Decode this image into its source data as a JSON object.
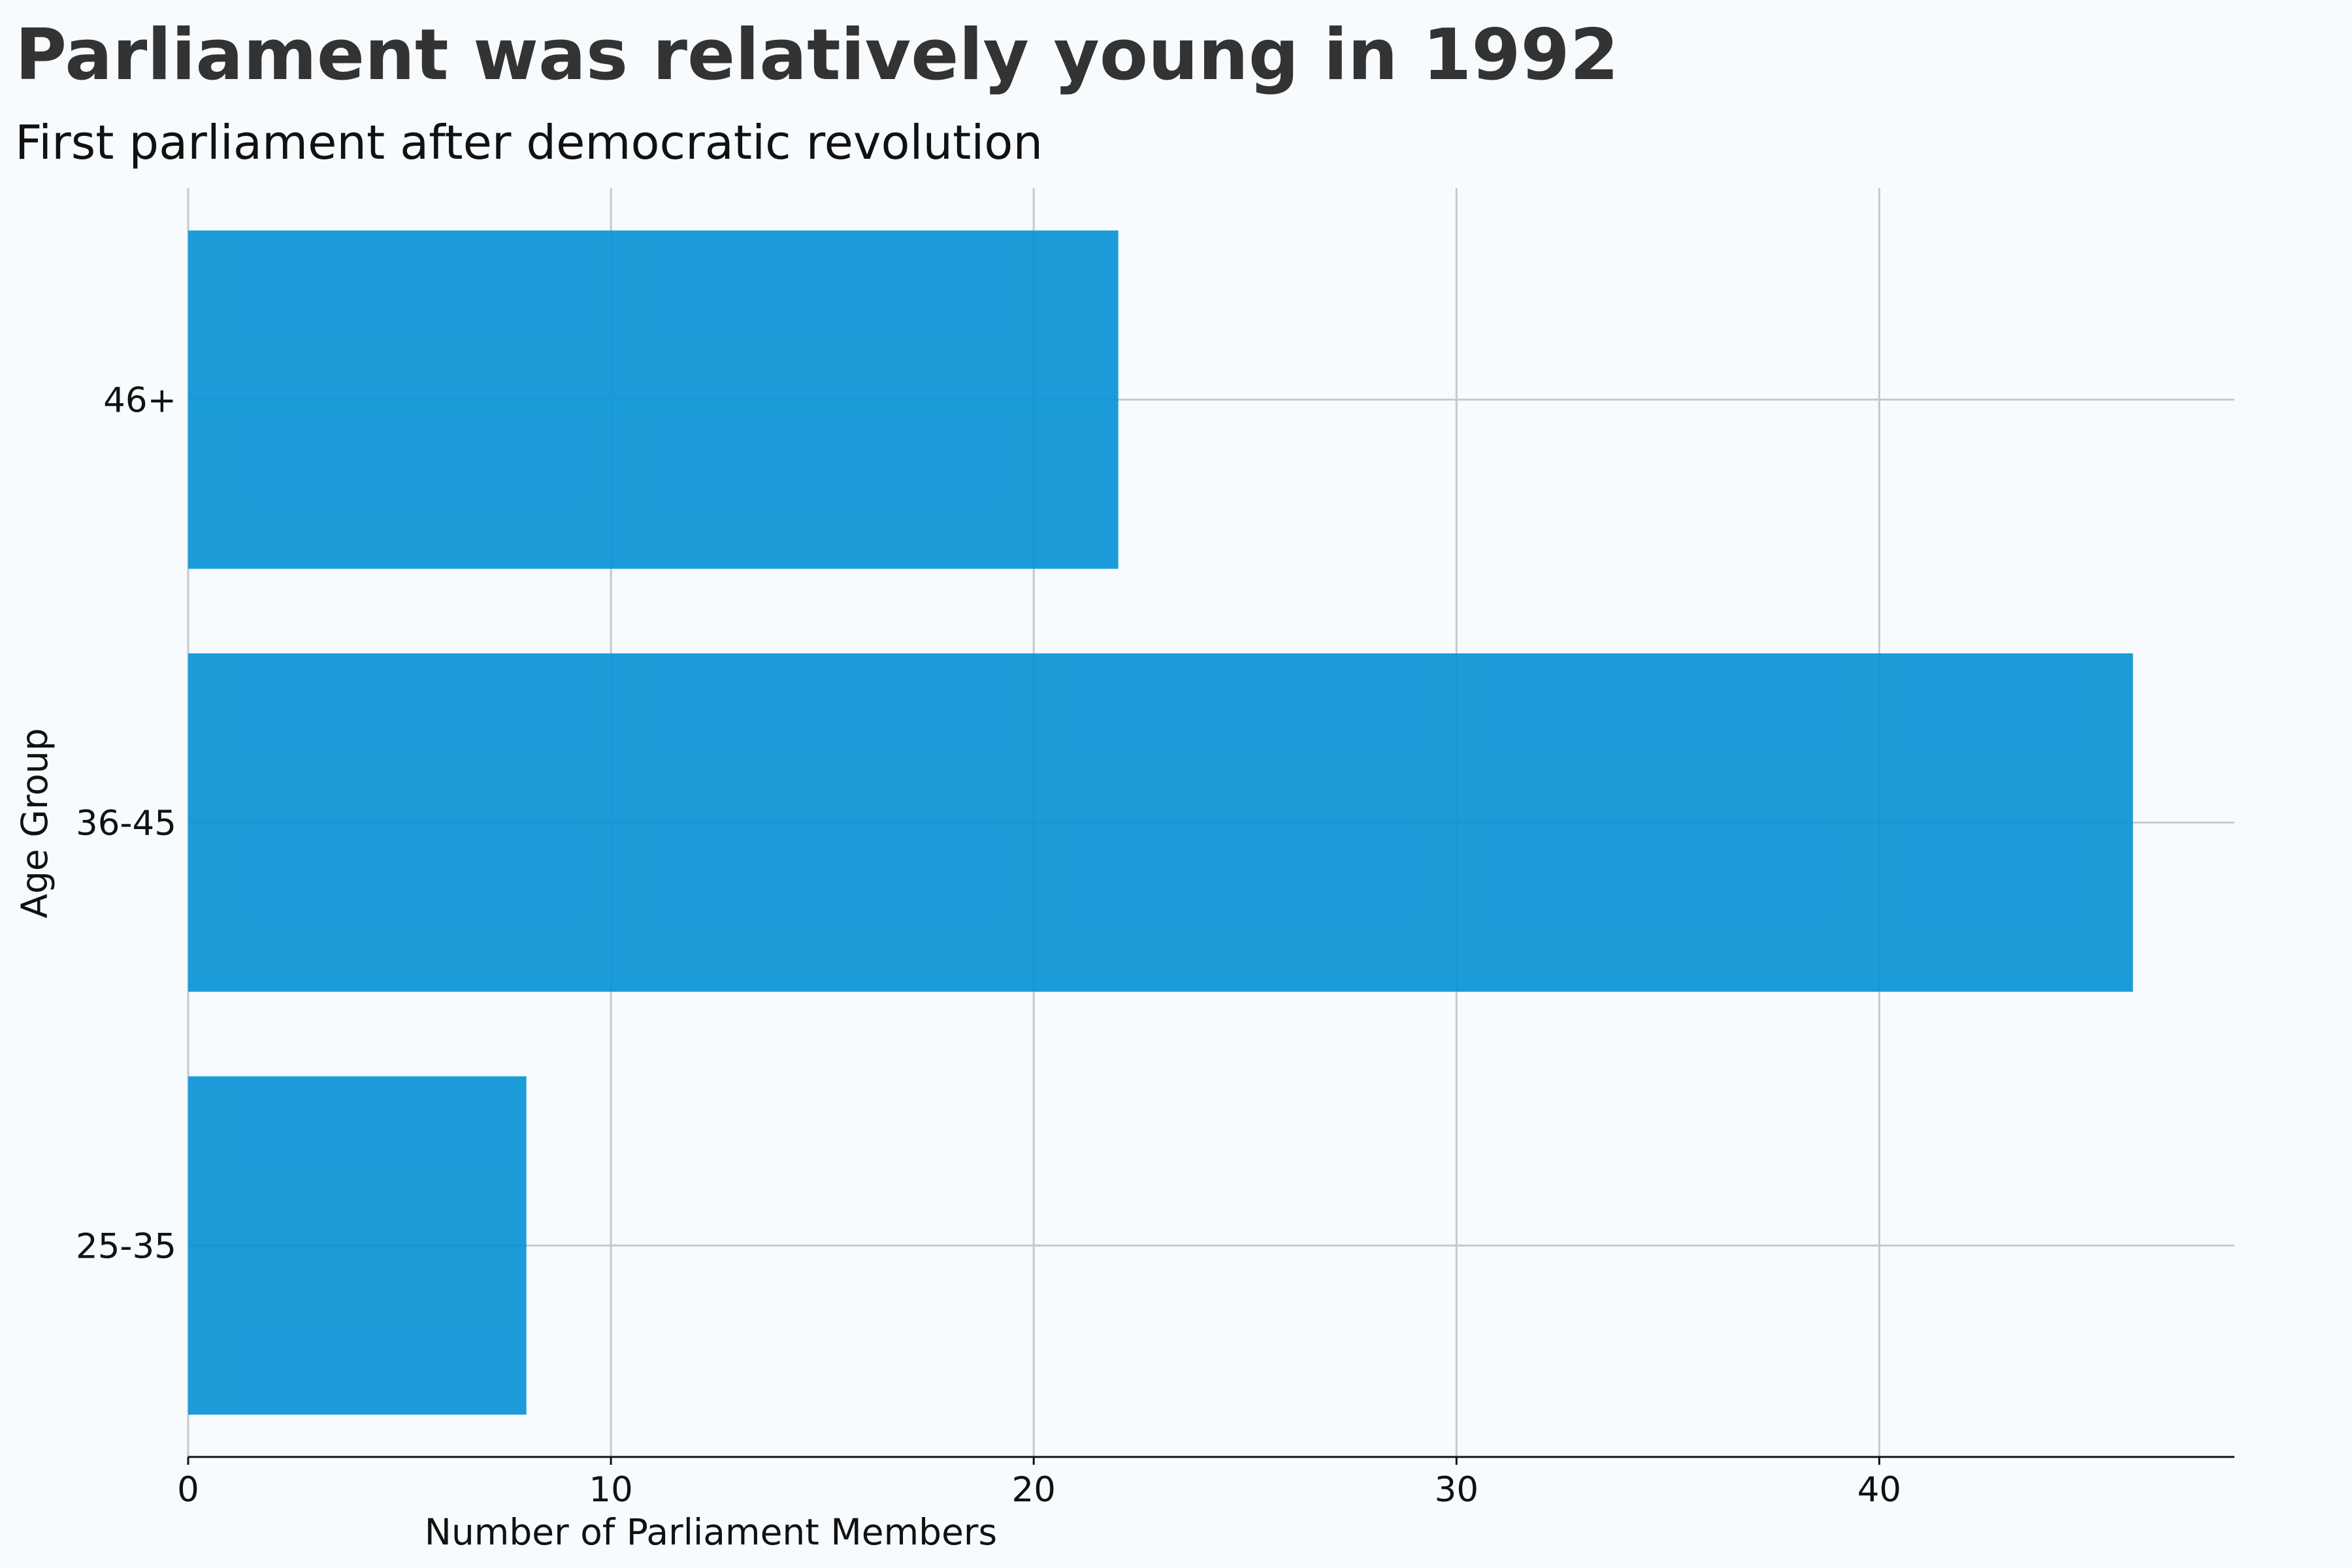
{
  "chart_data": {
    "type": "bar",
    "orientation": "horizontal",
    "title": "Parliament was relatively young in 1992",
    "subtitle": "First parliament after democratic revolution",
    "xlabel": "Number of Parliament Members",
    "ylabel": "Age Group",
    "categories": [
      "25-35",
      "36-45",
      "46+"
    ],
    "values": [
      8,
      46,
      22
    ],
    "xlim": [
      0,
      48.4
    ],
    "xticks": [
      0,
      10,
      20,
      30,
      40
    ],
    "grid": true,
    "bar_color": "#0a94d6",
    "background": "#f7fbfe"
  }
}
